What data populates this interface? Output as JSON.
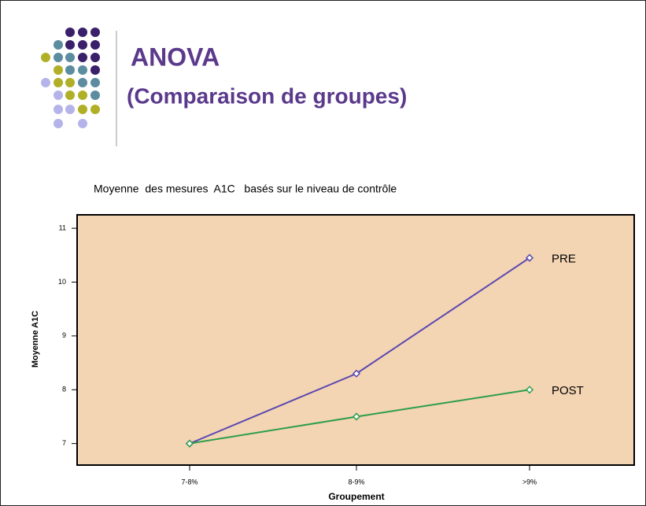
{
  "header": {
    "title": "ANOVA",
    "subtitle": "(Comparaison de groupes)"
  },
  "chart_data": {
    "type": "line",
    "title": "Moyenne  des mesures  A1C   basés sur le niveau de contrôle",
    "x_label": "Groupement",
    "y_label": "Moyenne A1C",
    "categories": [
      "7-8%",
      "8-9%",
      ">9%"
    ],
    "series": [
      {
        "name": "PRE",
        "color": "#5a48b0",
        "values": [
          7.0,
          8.3,
          10.45
        ]
      },
      {
        "name": "POST",
        "color": "#2e9e4a",
        "values": [
          7.0,
          7.5,
          8.0
        ]
      }
    ],
    "ylim": [
      6.6,
      11.25
    ],
    "yticks": [
      7,
      8,
      9,
      10,
      11
    ],
    "background": "#f3d4b3"
  }
}
